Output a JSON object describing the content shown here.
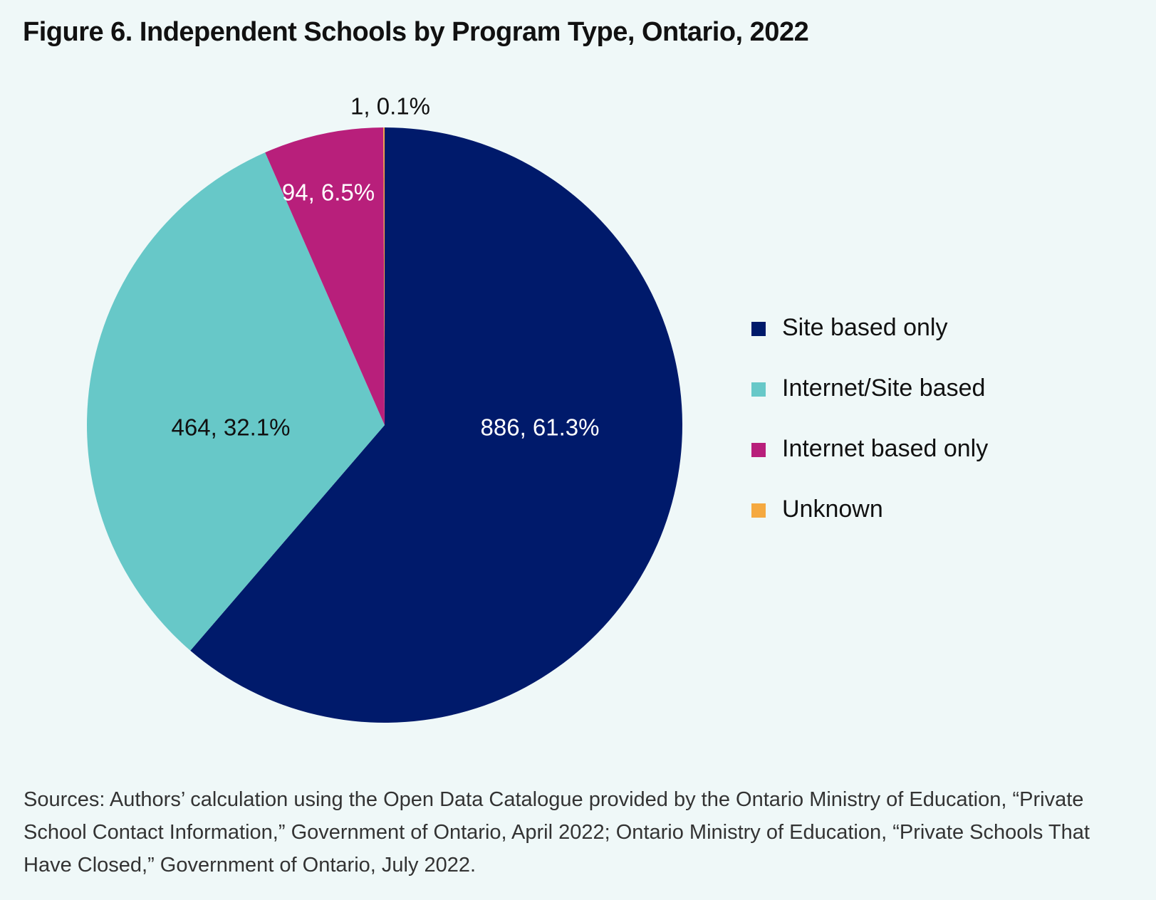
{
  "title": "Figure 6. Independent Schools by Program Type, Ontario, 2022",
  "chart_data": {
    "type": "pie",
    "title": "Figure 6. Independent Schools by Program Type, Ontario, 2022",
    "slices": [
      {
        "name": "Site based only",
        "value": 886,
        "percent": 61.3,
        "label": "886, 61.3%",
        "color": "#001a6b",
        "label_color": "#ffffff"
      },
      {
        "name": "Internet/Site based",
        "value": 464,
        "percent": 32.1,
        "label": "464, 32.1%",
        "color": "#67c8c8",
        "label_color": "#111111"
      },
      {
        "name": "Internet based only",
        "value": 94,
        "percent": 6.5,
        "label": "94, 6.5%",
        "color": "#b81f7b",
        "label_color": "#ffffff"
      },
      {
        "name": "Unknown",
        "value": 1,
        "percent": 0.1,
        "label": "1, 0.1%",
        "color": "#f5a940",
        "label_color": "#111111"
      }
    ],
    "start_angle": "12 o'clock",
    "direction": "clockwise",
    "legend_position": "right"
  },
  "source_note": "Sources: Authors’ calculation using the Open Data Catalogue provided by the Ontario Ministry of Education, “Private School Contact Information,” Government of Ontario, April 2022; Ontario Ministry of Education, “Private Schools That Have Closed,” Government of Ontario, July 2022."
}
